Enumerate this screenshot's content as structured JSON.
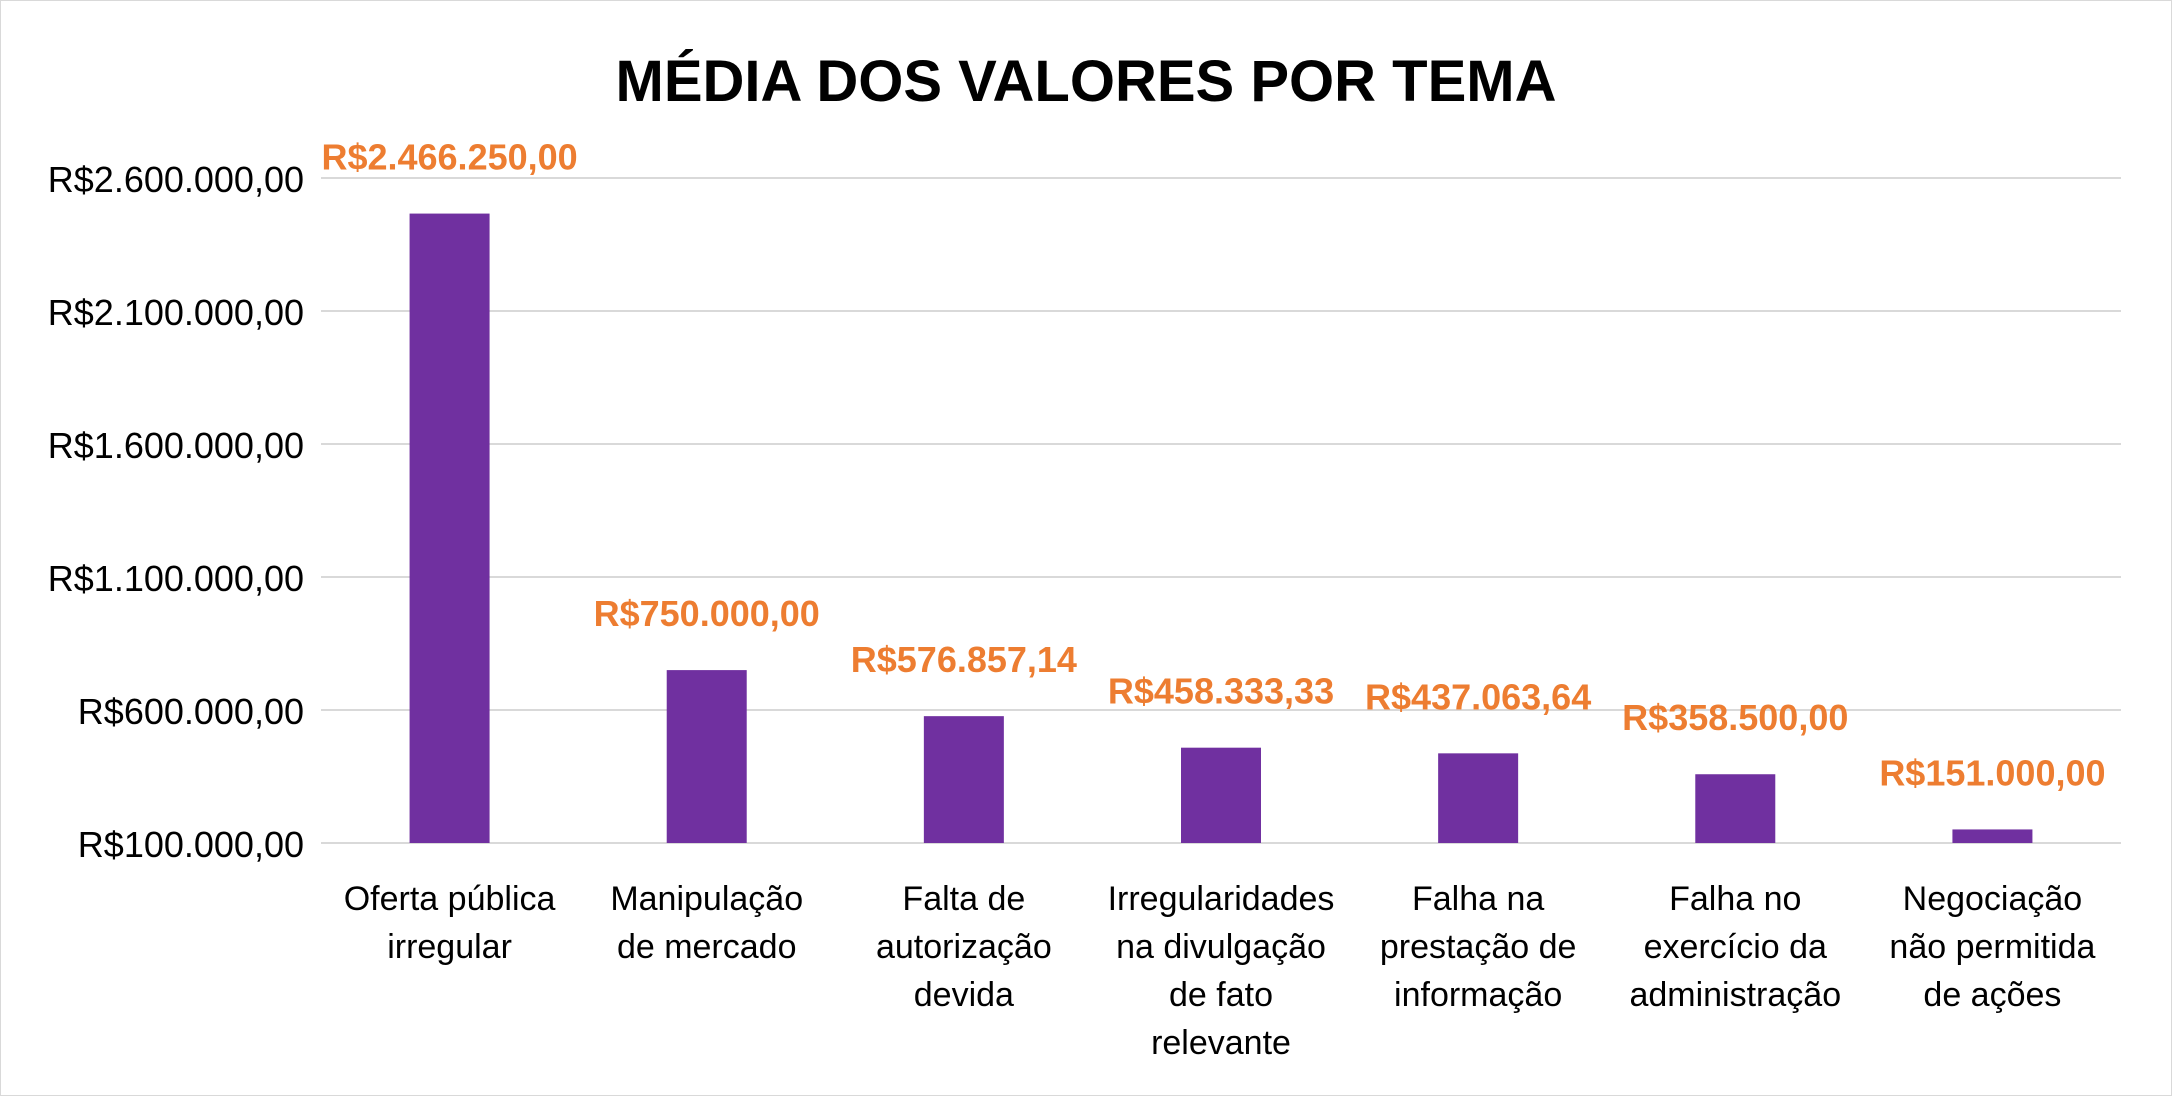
{
  "chart_data": {
    "type": "bar",
    "title": "MÉDIA DOS VALORES POR TEMA",
    "categories": [
      [
        "Oferta pública",
        "irregular"
      ],
      [
        "Manipulação",
        "de mercado"
      ],
      [
        "Falta de",
        "autorização",
        "devida"
      ],
      [
        "Irregularidades",
        "na divulgação",
        "de fato",
        "relevante"
      ],
      [
        "Falha na",
        "prestação de",
        "informação"
      ],
      [
        "Falha no",
        "exercício da",
        "administração"
      ],
      [
        "Negociação",
        "não permitida",
        "de ações"
      ]
    ],
    "values": [
      2466250.0,
      750000.0,
      576857.14,
      458333.33,
      437063.64,
      358500.0,
      151000.0
    ],
    "data_labels": [
      "R$2.466.250,00",
      "R$750.000,00",
      "R$576.857,14",
      "R$458.333,33",
      "R$437.063,64",
      "R$358.500,00",
      "R$151.000,00"
    ],
    "y_ticks": [
      100000,
      600000,
      1100000,
      1600000,
      2100000,
      2600000
    ],
    "y_tick_labels": [
      "R$100.000,00",
      "R$600.000,00",
      "R$1.100.000,00",
      "R$1.600.000,00",
      "R$2.100.000,00",
      "R$2.600.000,00"
    ],
    "ylim": [
      100000,
      2600000
    ],
    "xlabel": "",
    "ylabel": "",
    "grid": true,
    "colors": {
      "bar": "#7030a0",
      "data_label": "#ed7d31",
      "gridline": "#d9d9d9",
      "text": "#000000"
    }
  }
}
